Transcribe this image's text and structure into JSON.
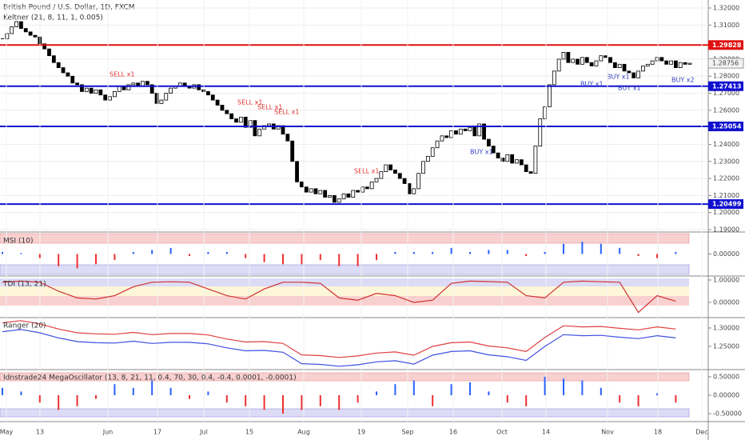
{
  "chart_data": [
    {
      "type": "candlestick",
      "title": "British Pound / U.S. Dollar, 1D, FXCM",
      "subtitle": "Keltner (21, 8, 11, 1, 0.005)",
      "close": [
        1.302,
        1.305,
        1.309,
        1.312,
        1.308,
        1.306,
        1.304,
        1.303,
        1.299,
        1.296,
        1.292,
        1.288,
        1.285,
        1.282,
        1.28,
        1.276,
        1.275,
        1.271,
        1.273,
        1.27,
        1.272,
        1.269,
        1.266,
        1.268,
        1.271,
        1.274,
        1.272,
        1.275,
        1.276,
        1.274,
        1.277,
        1.275,
        1.27,
        1.264,
        1.266,
        1.27,
        1.273,
        1.274,
        1.276,
        1.274,
        1.273,
        1.275,
        1.272,
        1.271,
        1.269,
        1.266,
        1.263,
        1.26,
        1.258,
        1.255,
        1.253,
        1.256,
        1.25,
        1.254,
        1.245,
        1.249,
        1.251,
        1.252,
        1.249,
        1.251,
        1.246,
        1.242,
        1.23,
        1.218,
        1.215,
        1.212,
        1.214,
        1.211,
        1.213,
        1.209,
        1.21,
        1.206,
        1.208,
        1.211,
        1.209,
        1.213,
        1.212,
        1.215,
        1.214,
        1.218,
        1.22,
        1.224,
        1.228,
        1.225,
        1.223,
        1.22,
        1.217,
        1.211,
        1.214,
        1.223,
        1.23,
        1.233,
        1.238,
        1.242,
        1.245,
        1.244,
        1.248,
        1.246,
        1.249,
        1.248,
        1.25,
        1.245,
        1.252,
        1.243,
        1.239,
        1.235,
        1.232,
        1.23,
        1.234,
        1.229,
        1.231,
        1.228,
        1.224,
        1.223,
        1.239,
        1.255,
        1.262,
        1.275,
        1.283,
        1.29,
        1.294,
        1.288,
        1.29,
        1.287,
        1.291,
        1.288,
        1.286,
        1.289,
        1.292,
        1.291,
        1.288,
        1.285,
        1.287,
        1.283,
        1.282,
        1.279,
        1.283,
        1.286,
        1.287,
        1.289,
        1.291,
        1.289,
        1.287,
        1.289,
        1.285,
        1.288,
        1.287,
        1.2876
      ],
      "levels": [
        {
          "value": 1.29828,
          "color": "#e01010"
        },
        {
          "value": 1.27413,
          "color": "#1010d0"
        },
        {
          "value": 1.25054,
          "color": "#1010d0"
        },
        {
          "value": 1.20499,
          "color": "#1010d0"
        }
      ],
      "last_price": 1.28756,
      "annotations": [
        "SELL x1",
        "SELL x1",
        "SELL x1",
        "SELL x1",
        "SELL x1",
        "BUY x1",
        "BUY x1",
        "BUY x1",
        "BUY x1",
        "BUY x2"
      ],
      "x_labels": [
        "May",
        "13",
        "Jun",
        "17",
        "Jul",
        "15",
        "Aug",
        "19",
        "Sep",
        "16",
        "Oct",
        "14",
        "Nov",
        "18",
        "Dec"
      ],
      "ylim": [
        1.1886,
        1.3247
      ],
      "yticks": [
        {
          "value": 1.19,
          "label": "1.19000"
        },
        {
          "value": 1.2,
          "label": "1.20000"
        },
        {
          "value": 1.21,
          "label": "1.21000"
        },
        {
          "value": 1.22,
          "label": "1.22000"
        },
        {
          "value": 1.23,
          "label": "1.23000"
        },
        {
          "value": 1.24,
          "label": "1.24000"
        },
        {
          "value": 1.26,
          "label": "1.26000"
        },
        {
          "value": 1.27,
          "label": "1.27000"
        },
        {
          "value": 1.28,
          "label": "1.28000"
        },
        {
          "value": 1.29,
          "label": "1.29000"
        },
        {
          "value": 1.31,
          "label": "1.31000"
        },
        {
          "value": 1.32,
          "label": "1.32000"
        }
      ]
    },
    {
      "type": "bar",
      "title": "MSI (10)",
      "color_up": "#2962ff",
      "color_down": "#ef3030",
      "values": [
        0.1,
        0.05,
        -0.2,
        -0.6,
        -0.7,
        -0.5,
        -0.3,
        0.1,
        0.2,
        0.3,
        -0.1,
        0.1,
        0.1,
        -0.2,
        -0.4,
        -0.5,
        -0.5,
        -0.3,
        -0.6,
        -0.6,
        -0.3,
        0.1,
        0.1,
        0.1,
        0.3,
        0.1,
        0.2,
        0.2,
        -0.1,
        0.1,
        0.5,
        0.6,
        0.5,
        0.3,
        -0.1,
        -0.2,
        0.1
      ],
      "ylim": [
        -1,
        1
      ],
      "yticks": [
        {
          "value": 0,
          "label": "0.00000"
        }
      ]
    },
    {
      "type": "line",
      "title": "TDI (13, 21)",
      "series": [
        {
          "color": "#d03030",
          "values": [
            0.9,
            0.95,
            0.9,
            0.5,
            0.2,
            0.15,
            0.3,
            0.7,
            0.9,
            0.92,
            0.9,
            0.6,
            0.3,
            0.15,
            0.6,
            0.9,
            0.9,
            0.85,
            0.2,
            0.1,
            0.4,
            0.3,
            0.0,
            0.1,
            0.85,
            0.95,
            0.93,
            0.9,
            0.3,
            0.2,
            0.9,
            0.95,
            0.92,
            0.9,
            -0.45,
            0.3,
            0.05
          ]
        }
      ],
      "ylim": [
        -0.607,
        1.143
      ],
      "yticks": [
        {
          "value": 0,
          "label": "0.00000"
        },
        {
          "value": 1,
          "label": "1.00000"
        }
      ]
    },
    {
      "type": "line",
      "title": "Ranger (20)",
      "series": [
        {
          "color": "#e04040",
          "values": [
            1.314,
            1.32,
            1.311,
            1.297,
            1.287,
            1.284,
            1.283,
            1.288,
            1.282,
            1.285,
            1.285,
            1.281,
            1.27,
            1.262,
            1.263,
            1.258,
            1.227,
            1.225,
            1.22,
            1.224,
            1.232,
            1.235,
            1.226,
            1.25,
            1.26,
            1.262,
            1.251,
            1.246,
            1.236,
            1.274,
            1.306,
            1.303,
            1.304,
            1.299,
            1.295,
            1.303,
            1.297
          ]
        },
        {
          "color": "#4050e0",
          "values": [
            1.29,
            1.296,
            1.287,
            1.273,
            1.263,
            1.26,
            1.259,
            1.264,
            1.258,
            1.261,
            1.261,
            1.257,
            1.246,
            1.238,
            1.239,
            1.234,
            1.203,
            1.201,
            1.196,
            1.2,
            1.208,
            1.211,
            1.202,
            1.226,
            1.236,
            1.238,
            1.227,
            1.222,
            1.212,
            1.25,
            1.282,
            1.279,
            1.28,
            1.275,
            1.271,
            1.279,
            1.273
          ]
        }
      ],
      "ylim": [
        1.1913,
        1.326
      ],
      "yticks": [
        {
          "value": 1.25,
          "label": "1.25000"
        },
        {
          "value": 1.3,
          "label": "1.30000"
        }
      ]
    },
    {
      "type": "bar",
      "title": "Idnstrade24 MegaOscillator (13, 8, 21, 11, 0.4, 70, 30, 0.4, -0.4, 0.0001, -0.0001)",
      "color_up": "#2962ff",
      "color_down": "#ef3030",
      "values": [
        0.2,
        0.1,
        -0.2,
        -0.4,
        -0.3,
        -0.1,
        0.3,
        0.2,
        0.4,
        0.2,
        -0.1,
        0.1,
        -0.2,
        -0.3,
        -0.4,
        -0.5,
        -0.4,
        -0.3,
        -0.4,
        -0.2,
        0.1,
        0.3,
        0.4,
        -0.3,
        0.3,
        0.35,
        0.1,
        -0.2,
        -0.3,
        0.5,
        0.45,
        0.4,
        0.2,
        -0.2,
        -0.3,
        0.05,
        -0.2
      ],
      "ylim": [
        -0.674,
        0.674
      ],
      "yticks": [
        {
          "value": -0.5,
          "label": "-0.50000"
        },
        {
          "value": 0,
          "label": "0.00000"
        },
        {
          "value": 0.5,
          "label": "0.50000"
        }
      ]
    }
  ]
}
